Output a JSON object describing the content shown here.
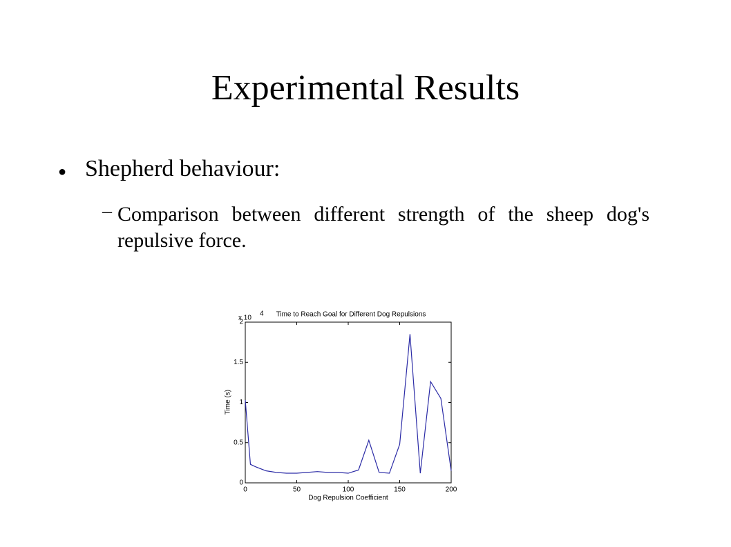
{
  "title": "Experimental Results",
  "bullets": [
    {
      "text": "Shepherd behaviour:",
      "subbullets": [
        "Comparison between different strength of the sheep dog's repulsive force."
      ]
    }
  ],
  "chart_data": {
    "type": "line",
    "title": "Time to Reach Goal for Different Dog Repulsions",
    "x_label": "Dog Repulsion Coefficient",
    "y_label": "Time (s)",
    "y_multiplier": "x 10",
    "y_multiplier_exponent": "4",
    "x": [
      0,
      5,
      10,
      20,
      30,
      40,
      50,
      60,
      70,
      80,
      90,
      100,
      110,
      120,
      130,
      140,
      150,
      160,
      170,
      180,
      190,
      200
    ],
    "series": [
      {
        "color": "#2b2ba6",
        "values": [
          1.03,
          0.23,
          0.2,
          0.15,
          0.13,
          0.12,
          0.12,
          0.13,
          0.14,
          0.13,
          0.13,
          0.12,
          0.16,
          0.53,
          0.13,
          0.12,
          0.48,
          1.85,
          0.12,
          1.26,
          1.05,
          0.15
        ]
      }
    ],
    "xlim": [
      0,
      200
    ],
    "xticks": [
      0,
      50,
      100,
      150,
      200
    ],
    "ylim": [
      0,
      2
    ],
    "yticks": [
      0,
      0.5,
      1,
      1.5,
      2
    ],
    "grid": false
  }
}
